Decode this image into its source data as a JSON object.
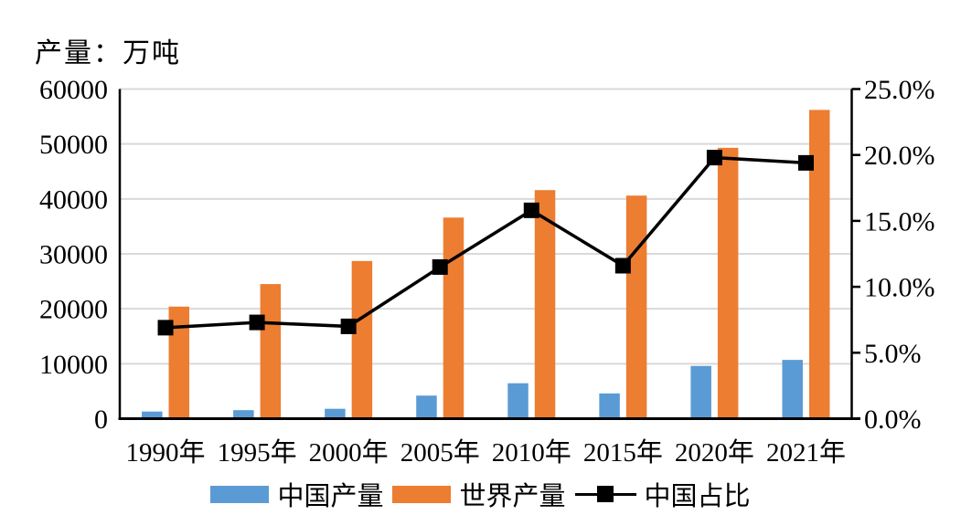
{
  "chart": {
    "title": "产量：万吨"
  },
  "chart_data": {
    "type": "combo_bar_line",
    "title": "产量：万吨",
    "categories": [
      "1990年",
      "1995年",
      "2000年",
      "2005年",
      "2010年",
      "2015年",
      "2020年",
      "2021年"
    ],
    "series": [
      {
        "name": "中国产量",
        "type": "bar",
        "axis": "left",
        "color": "#5B9BD5",
        "values": [
          1300,
          1550,
          1800,
          4200,
          6450,
          4600,
          9600,
          10700
        ]
      },
      {
        "name": "世界产量",
        "type": "bar",
        "axis": "left",
        "color": "#ED7D31",
        "values": [
          20400,
          24500,
          28700,
          36600,
          41600,
          40600,
          49300,
          56200
        ]
      },
      {
        "name": "中国占比",
        "type": "line",
        "axis": "right",
        "color": "#000000",
        "marker": "square",
        "values": [
          6.9,
          7.3,
          7.0,
          11.5,
          15.8,
          11.6,
          19.8,
          19.4
        ]
      }
    ],
    "left_axis": {
      "title": "产量：万吨",
      "min": 0,
      "max": 60000,
      "step": 10000,
      "tick_labels": [
        "0",
        "10000",
        "20000",
        "30000",
        "40000",
        "50000",
        "60000"
      ]
    },
    "right_axis": {
      "min": 0,
      "max": 25,
      "step": 5,
      "unit": "%",
      "tick_labels": [
        "0.0%",
        "5.0%",
        "10.0%",
        "15.0%",
        "20.0%",
        "25.0%"
      ]
    },
    "grid": "horizontal",
    "legend_position": "bottom",
    "colors": {
      "grid": "#D9D9D9",
      "axis": "#000000",
      "background": "#FFFFFF"
    }
  },
  "legend": {
    "items": [
      {
        "label": "中国产量",
        "swatch": "bar",
        "color": "#5B9BD5"
      },
      {
        "label": "世界产量",
        "swatch": "bar",
        "color": "#ED7D31"
      },
      {
        "label": "中国占比",
        "swatch": "line-square-marker",
        "color": "#000000"
      }
    ]
  }
}
